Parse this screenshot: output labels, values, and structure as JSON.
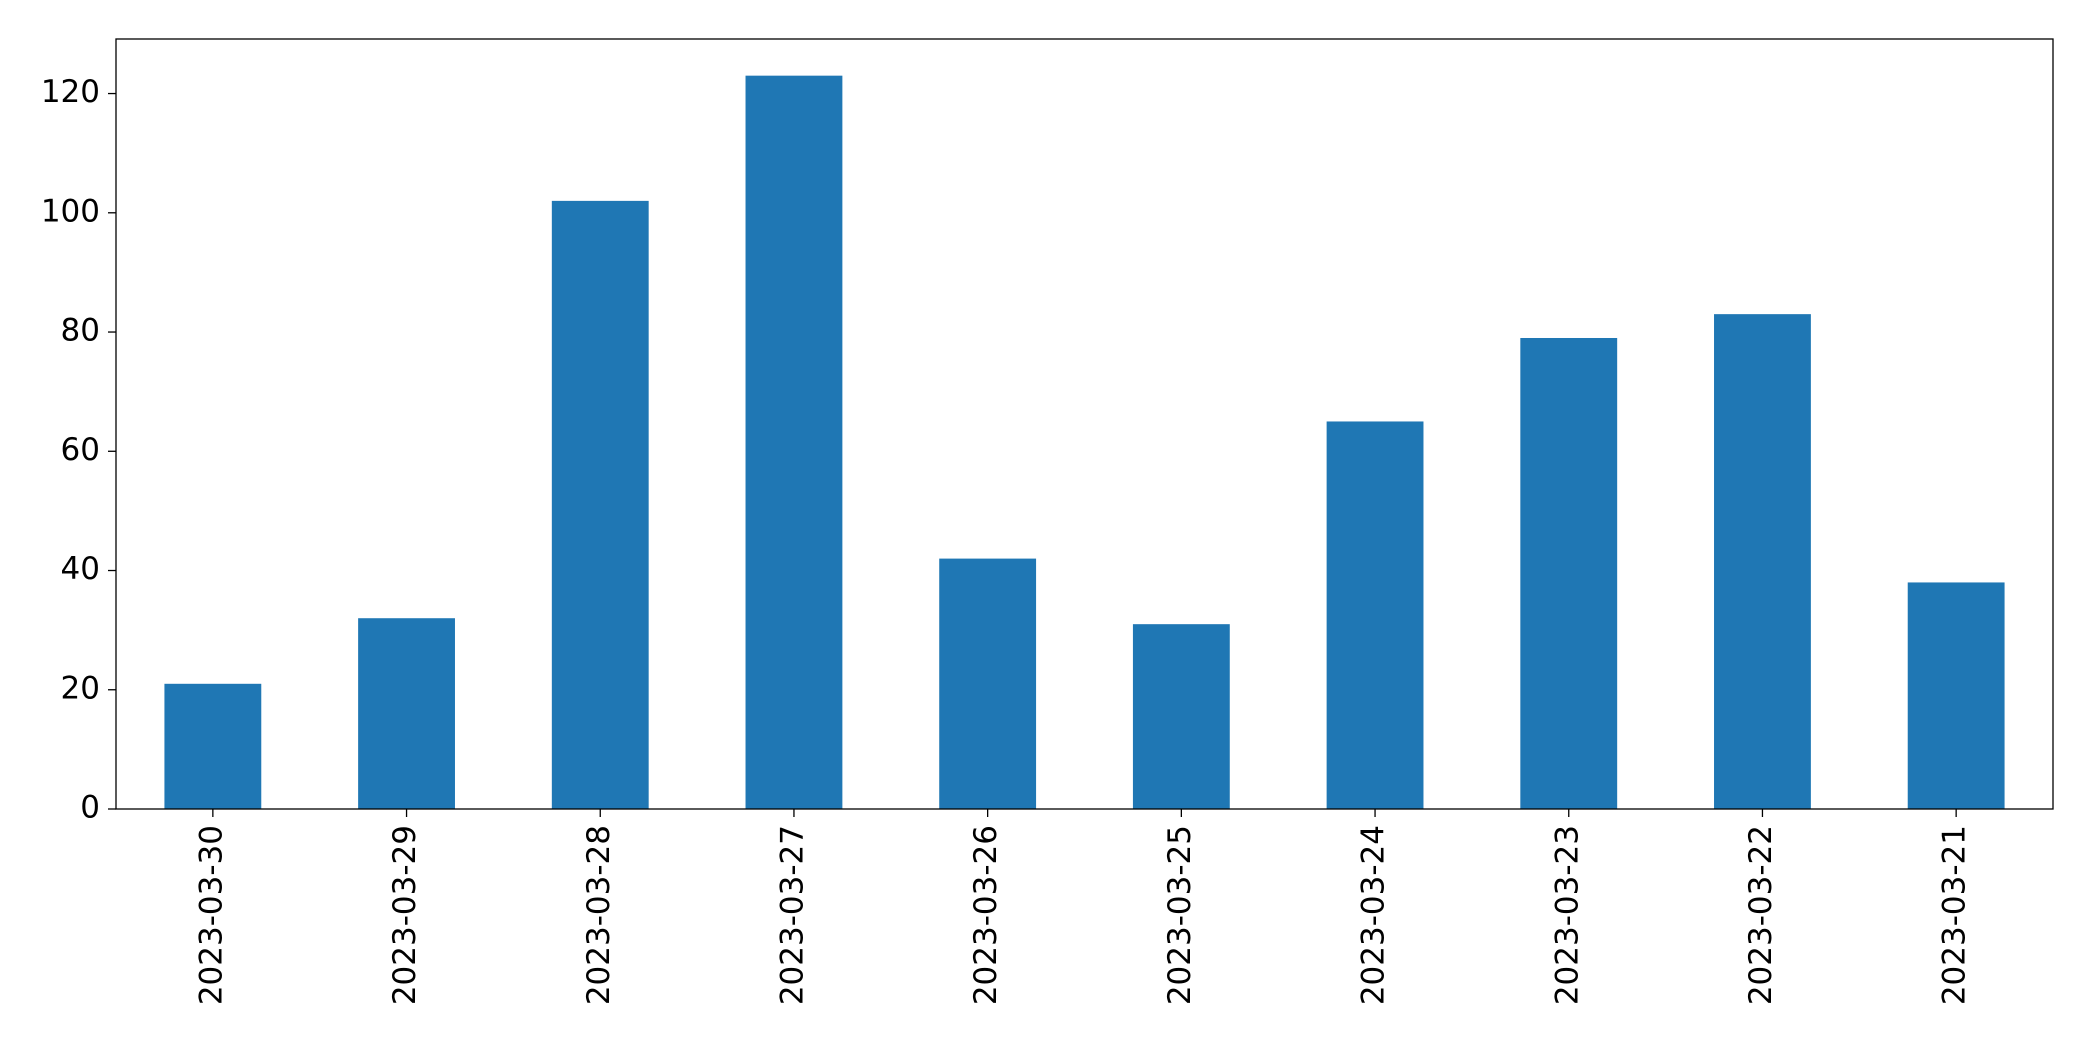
{
  "chart_data": {
    "type": "bar",
    "categories": [
      "2023-03-30",
      "2023-03-29",
      "2023-03-28",
      "2023-03-27",
      "2023-03-26",
      "2023-03-25",
      "2023-03-24",
      "2023-03-23",
      "2023-03-22",
      "2023-03-21"
    ],
    "values": [
      21,
      32,
      102,
      123,
      42,
      31,
      65,
      79,
      83,
      38
    ],
    "color": "#1f77b4",
    "ylim": [
      0,
      129.15
    ],
    "yticks": [
      0,
      20,
      40,
      60,
      80,
      100,
      120
    ],
    "grid": false
  }
}
